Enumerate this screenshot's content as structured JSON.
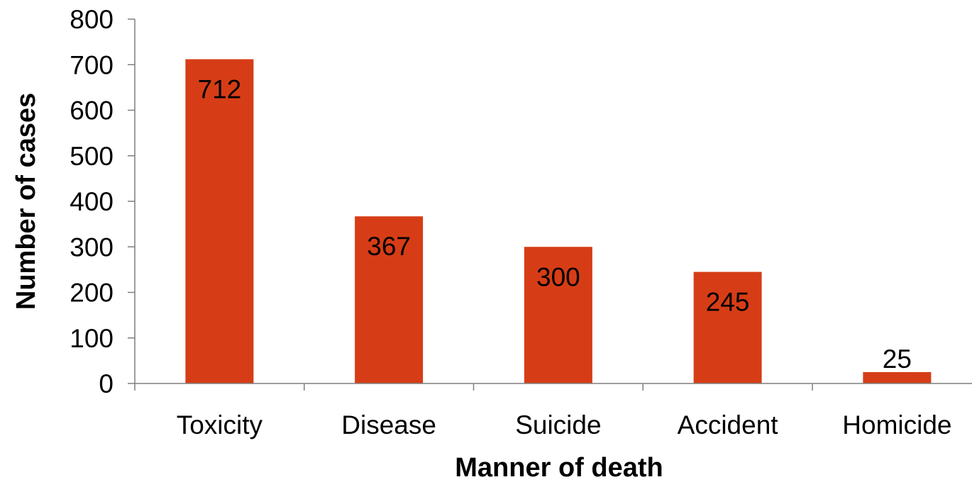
{
  "chart_data": {
    "type": "bar",
    "title": "",
    "xlabel": "Manner of death",
    "ylabel": "Number of cases",
    "categories": [
      "Toxicity",
      "Disease",
      "Suicide",
      "Accident",
      "Homicide"
    ],
    "values": [
      712,
      367,
      300,
      245,
      25
    ],
    "data_labels": [
      "712",
      "367",
      "300",
      "245",
      "25"
    ],
    "ylim": [
      0,
      800
    ],
    "yticks": [
      0,
      100,
      200,
      300,
      400,
      500,
      600,
      700,
      800
    ],
    "grid": false,
    "legend": "none",
    "bar_color": "#d63d16",
    "axis_color": "#7f7f7f"
  }
}
